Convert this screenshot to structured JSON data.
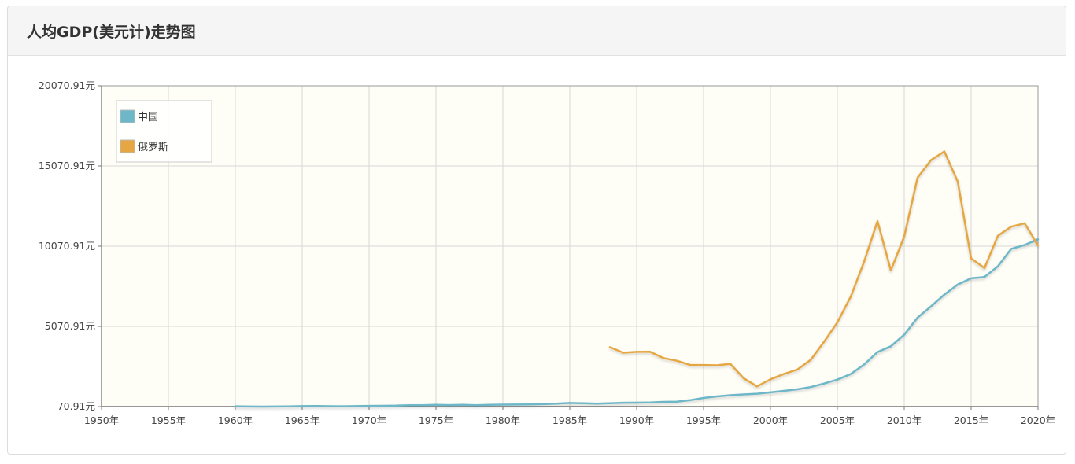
{
  "header": {
    "title": "人均GDP(美元计)走势图"
  },
  "colors": {
    "china": "#6db7c8",
    "russia": "#e6a742",
    "plot_bg": "#fefdf6",
    "grid": "#d8d8d8"
  },
  "chart_data": {
    "type": "line",
    "title": "人均GDP(美元计)走势图",
    "xlabel": "",
    "ylabel": "",
    "xlim": [
      1950,
      2020
    ],
    "ylim": [
      70.91,
      20070.91
    ],
    "x_ticks": [
      {
        "value": 1950,
        "label": "1950年"
      },
      {
        "value": 1955,
        "label": "1955年"
      },
      {
        "value": 1960,
        "label": "1960年"
      },
      {
        "value": 1965,
        "label": "1965年"
      },
      {
        "value": 1970,
        "label": "1970年"
      },
      {
        "value": 1975,
        "label": "1975年"
      },
      {
        "value": 1980,
        "label": "1980年"
      },
      {
        "value": 1985,
        "label": "1985年"
      },
      {
        "value": 1990,
        "label": "1990年"
      },
      {
        "value": 1995,
        "label": "1995年"
      },
      {
        "value": 2000,
        "label": "2000年"
      },
      {
        "value": 2005,
        "label": "2005年"
      },
      {
        "value": 2010,
        "label": "2010年"
      },
      {
        "value": 2015,
        "label": "2015年"
      },
      {
        "value": 2020,
        "label": "2020年"
      }
    ],
    "y_ticks": [
      {
        "value": 70.91,
        "label": "70.91元"
      },
      {
        "value": 5070.91,
        "label": "5070.91元"
      },
      {
        "value": 10070.91,
        "label": "10070.91元"
      },
      {
        "value": 15070.91,
        "label": "15070.91元"
      },
      {
        "value": 20070.91,
        "label": "20070.91元"
      }
    ],
    "grid": true,
    "legend_position": "top-left",
    "series": [
      {
        "name": "中国",
        "color_key": "china",
        "points": [
          [
            1960,
            90
          ],
          [
            1961,
            76
          ],
          [
            1962,
            71
          ],
          [
            1963,
            74
          ],
          [
            1964,
            85
          ],
          [
            1965,
            98
          ],
          [
            1966,
            104
          ],
          [
            1967,
            96
          ],
          [
            1968,
            91
          ],
          [
            1969,
            100
          ],
          [
            1970,
            113
          ],
          [
            1971,
            119
          ],
          [
            1972,
            132
          ],
          [
            1973,
            157
          ],
          [
            1974,
            160
          ],
          [
            1975,
            178
          ],
          [
            1976,
            165
          ],
          [
            1977,
            185
          ],
          [
            1978,
            156
          ],
          [
            1979,
            184
          ],
          [
            1980,
            195
          ],
          [
            1981,
            197
          ],
          [
            1982,
            203
          ],
          [
            1983,
            225
          ],
          [
            1984,
            251
          ],
          [
            1985,
            294
          ],
          [
            1986,
            282
          ],
          [
            1987,
            251
          ],
          [
            1988,
            284
          ],
          [
            1989,
            311
          ],
          [
            1990,
            318
          ],
          [
            1991,
            333
          ],
          [
            1992,
            366
          ],
          [
            1993,
            377
          ],
          [
            1994,
            473
          ],
          [
            1995,
            610
          ],
          [
            1996,
            709
          ],
          [
            1997,
            782
          ],
          [
            1998,
            829
          ],
          [
            1999,
            873
          ],
          [
            2000,
            959
          ],
          [
            2001,
            1053
          ],
          [
            2002,
            1149
          ],
          [
            2003,
            1289
          ],
          [
            2004,
            1509
          ],
          [
            2005,
            1753
          ],
          [
            2006,
            2099
          ],
          [
            2007,
            2694
          ],
          [
            2008,
            3468
          ],
          [
            2009,
            3832
          ],
          [
            2010,
            4550
          ],
          [
            2011,
            5618
          ],
          [
            2012,
            6317
          ],
          [
            2013,
            7051
          ],
          [
            2014,
            7679
          ],
          [
            2015,
            8067
          ],
          [
            2016,
            8148
          ],
          [
            2017,
            8817
          ],
          [
            2018,
            9905
          ],
          [
            2019,
            10144
          ],
          [
            2020,
            10500
          ]
        ]
      },
      {
        "name": "俄罗斯",
        "color_key": "russia",
        "points": [
          [
            1988,
            3777
          ],
          [
            1989,
            3428
          ],
          [
            1990,
            3485
          ],
          [
            1991,
            3490
          ],
          [
            1992,
            3095
          ],
          [
            1993,
            2930
          ],
          [
            1994,
            2663
          ],
          [
            1995,
            2666
          ],
          [
            1996,
            2644
          ],
          [
            1997,
            2737
          ],
          [
            1998,
            1834
          ],
          [
            1999,
            1331
          ],
          [
            2000,
            1772
          ],
          [
            2001,
            2100
          ],
          [
            2002,
            2375
          ],
          [
            2003,
            2976
          ],
          [
            2004,
            4100
          ],
          [
            2005,
            5323
          ],
          [
            2006,
            6920
          ],
          [
            2007,
            9101
          ],
          [
            2008,
            11635
          ],
          [
            2009,
            8563
          ],
          [
            2010,
            10675
          ],
          [
            2011,
            14351
          ],
          [
            2012,
            15434
          ],
          [
            2013,
            15974
          ],
          [
            2014,
            14096
          ],
          [
            2015,
            9313
          ],
          [
            2016,
            8705
          ],
          [
            2017,
            10720
          ],
          [
            2018,
            11287
          ],
          [
            2019,
            11497
          ],
          [
            2020,
            10127
          ]
        ]
      }
    ]
  }
}
